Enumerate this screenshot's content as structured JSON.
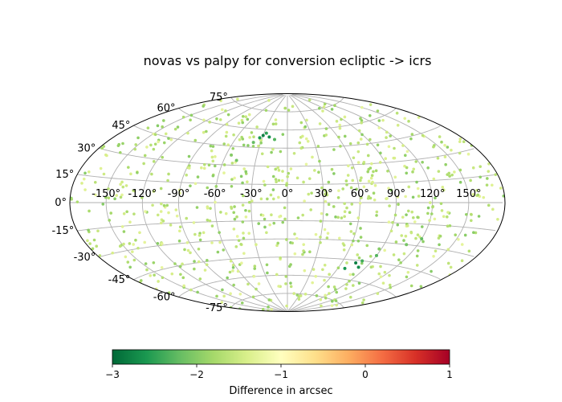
{
  "chart_data": {
    "type": "scatter",
    "projection": "aitoff",
    "title": "novas vs palpy for conversion ecliptic -> icrs",
    "x_ticks": [
      "-150°",
      "-120°",
      "-90°",
      "-60°",
      "-30°",
      "0°",
      "30°",
      "60°",
      "90°",
      "120°",
      "150°"
    ],
    "y_ticks": [
      "75°",
      "60°",
      "45°",
      "30°",
      "15°",
      "0°",
      "-15°",
      "-30°",
      "-45°",
      "-60°",
      "-75°"
    ],
    "xlim": [
      -180,
      180
    ],
    "ylim": [
      -90,
      90
    ],
    "grid": true,
    "colorbar": {
      "label": "Difference in arcsec",
      "min": -3,
      "max": 1,
      "ticks": [
        "−3",
        "−2",
        "−1",
        "0",
        "1"
      ],
      "colormap": [
        "#006837",
        "#1a9850",
        "#66bd63",
        "#a6d96a",
        "#d9ef8b",
        "#ffffbf",
        "#fee08b",
        "#fdae61",
        "#f46d43",
        "#d73027",
        "#a50026"
      ]
    },
    "highlighted_points": [
      {
        "lon": -30,
        "lat": 55,
        "value": -2.8
      },
      {
        "lon": -22,
        "lat": 54,
        "value": -2.7
      },
      {
        "lon": -33,
        "lat": 53,
        "value": -2.6
      },
      {
        "lon": -27,
        "lat": 57,
        "value": -2.5
      },
      {
        "lon": -15,
        "lat": 52,
        "value": -2.3
      },
      {
        "lon": -38,
        "lat": 49,
        "value": -2.2
      },
      {
        "lon": -48,
        "lat": 34,
        "value": -2.1
      },
      {
        "lon": -55,
        "lat": 38,
        "value": -2.0
      },
      {
        "lon": 75,
        "lat": -47,
        "value": -2.8
      },
      {
        "lon": 82,
        "lat": -50,
        "value": -2.7
      },
      {
        "lon": 68,
        "lat": -52,
        "value": -2.6
      },
      {
        "lon": 80,
        "lat": -45,
        "value": -2.4
      },
      {
        "lon": 90,
        "lat": -40,
        "value": -2.3
      },
      {
        "lon": 110,
        "lat": -30,
        "value": -2.1
      },
      {
        "lon": 120,
        "lat": -25,
        "value": -2.2
      },
      {
        "lon": 88,
        "lat": -35,
        "value": -2.0
      }
    ],
    "background_points": {
      "count": 780,
      "value_range": [
        -2.0,
        -1.25
      ],
      "distribution": "uniform on sphere"
    }
  }
}
